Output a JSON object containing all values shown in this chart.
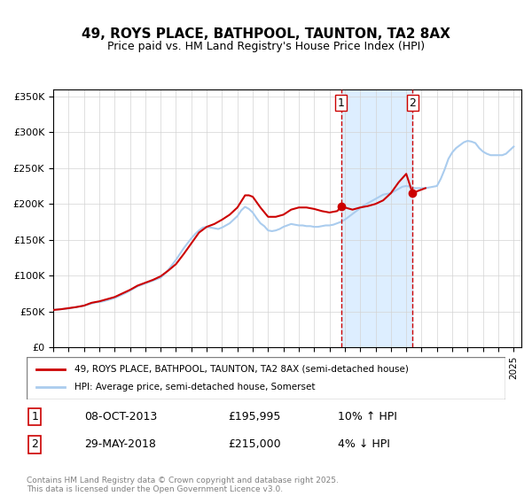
{
  "title": "49, ROYS PLACE, BATHPOOL, TAUNTON, TA2 8AX",
  "subtitle": "Price paid vs. HM Land Registry's House Price Index (HPI)",
  "legend_entry1": "49, ROYS PLACE, BATHPOOL, TAUNTON, TA2 8AX (semi-detached house)",
  "legend_entry2": "HPI: Average price, semi-detached house, Somerset",
  "footer": "Contains HM Land Registry data © Crown copyright and database right 2025.\nThis data is licensed under the Open Government Licence v3.0.",
  "sale1_date": "08-OCT-2013",
  "sale1_price": "£195,995",
  "sale1_hpi": "10% ↑ HPI",
  "sale2_date": "29-MAY-2018",
  "sale2_price": "£215,000",
  "sale2_hpi": "4% ↓ HPI",
  "marker1_x": 2013.77,
  "marker1_y": 195995,
  "marker2_x": 2018.41,
  "marker2_y": 215000,
  "vline1_x": 2013.77,
  "vline2_x": 2018.41,
  "shade_x1": 2013.77,
  "shade_x2": 2018.41,
  "hpi_color": "#aaccee",
  "price_color": "#cc0000",
  "marker_color": "#cc0000",
  "vline_color": "#cc0000",
  "shade_color": "#ddeeff",
  "ylim_min": 0,
  "ylim_max": 360000,
  "xlim_min": 1995,
  "xlim_max": 2025.5,
  "yticks": [
    0,
    50000,
    100000,
    150000,
    200000,
    250000,
    300000,
    350000
  ],
  "ytick_labels": [
    "£0",
    "£50K",
    "£100K",
    "£150K",
    "£200K",
    "£250K",
    "£300K",
    "£350K"
  ],
  "xticks": [
    1995,
    1996,
    1997,
    1998,
    1999,
    2000,
    2001,
    2002,
    2003,
    2004,
    2005,
    2006,
    2007,
    2008,
    2009,
    2010,
    2011,
    2012,
    2013,
    2014,
    2015,
    2016,
    2017,
    2018,
    2019,
    2020,
    2021,
    2022,
    2023,
    2024,
    2025
  ],
  "hpi_x": [
    1995.0,
    1995.25,
    1995.5,
    1995.75,
    1996.0,
    1996.25,
    1996.5,
    1996.75,
    1997.0,
    1997.25,
    1997.5,
    1997.75,
    1998.0,
    1998.25,
    1998.5,
    1998.75,
    1999.0,
    1999.25,
    1999.5,
    1999.75,
    2000.0,
    2000.25,
    2000.5,
    2000.75,
    2001.0,
    2001.25,
    2001.5,
    2001.75,
    2002.0,
    2002.25,
    2002.5,
    2002.75,
    2003.0,
    2003.25,
    2003.5,
    2003.75,
    2004.0,
    2004.25,
    2004.5,
    2004.75,
    2005.0,
    2005.25,
    2005.5,
    2005.75,
    2006.0,
    2006.25,
    2006.5,
    2006.75,
    2007.0,
    2007.25,
    2007.5,
    2007.75,
    2008.0,
    2008.25,
    2008.5,
    2008.75,
    2009.0,
    2009.25,
    2009.5,
    2009.75,
    2010.0,
    2010.25,
    2010.5,
    2010.75,
    2011.0,
    2011.25,
    2011.5,
    2011.75,
    2012.0,
    2012.25,
    2012.5,
    2012.75,
    2013.0,
    2013.25,
    2013.5,
    2013.75,
    2014.0,
    2014.25,
    2014.5,
    2014.75,
    2015.0,
    2015.25,
    2015.5,
    2015.75,
    2016.0,
    2016.25,
    2016.5,
    2016.75,
    2017.0,
    2017.25,
    2017.5,
    2017.75,
    2018.0,
    2018.25,
    2018.5,
    2018.75,
    2019.0,
    2019.25,
    2019.5,
    2019.75,
    2020.0,
    2020.25,
    2020.5,
    2020.75,
    2021.0,
    2021.25,
    2021.5,
    2021.75,
    2022.0,
    2022.25,
    2022.5,
    2022.75,
    2023.0,
    2023.25,
    2023.5,
    2023.75,
    2024.0,
    2024.25,
    2024.5,
    2024.75,
    2025.0
  ],
  "hpi_y": [
    52000,
    52500,
    53000,
    53500,
    54000,
    55000,
    56000,
    57000,
    58000,
    59500,
    61000,
    62500,
    63000,
    64000,
    65500,
    67000,
    68500,
    71000,
    73500,
    76000,
    79000,
    82000,
    85000,
    87000,
    89000,
    91000,
    93000,
    95000,
    97000,
    102000,
    108000,
    115000,
    122000,
    130000,
    138000,
    145000,
    152000,
    158000,
    163000,
    167000,
    168000,
    167000,
    166000,
    165000,
    167000,
    170000,
    173000,
    178000,
    183000,
    191000,
    196000,
    193000,
    188000,
    180000,
    173000,
    169000,
    163000,
    162000,
    163000,
    165000,
    168000,
    170000,
    172000,
    171000,
    170000,
    170000,
    169000,
    169000,
    168000,
    168000,
    169000,
    170000,
    170000,
    171000,
    173000,
    175000,
    178000,
    182000,
    186000,
    190000,
    194000,
    198000,
    201000,
    204000,
    207000,
    210000,
    213000,
    214000,
    215000,
    218000,
    221000,
    224000,
    225000,
    224000,
    222000,
    222000,
    222000,
    222000,
    223000,
    224000,
    225000,
    235000,
    248000,
    263000,
    272000,
    278000,
    282000,
    286000,
    288000,
    287000,
    285000,
    278000,
    273000,
    270000,
    268000,
    268000,
    268000,
    268000,
    270000,
    275000,
    280000
  ],
  "price_x": [
    1995.0,
    1995.5,
    1996.0,
    1996.5,
    1997.0,
    1997.5,
    1998.0,
    1998.5,
    1999.0,
    1999.5,
    2000.0,
    2000.5,
    2001.0,
    2001.5,
    2002.0,
    2002.5,
    2003.0,
    2003.5,
    2004.0,
    2004.5,
    2005.0,
    2005.5,
    2006.0,
    2006.5,
    2007.0,
    2007.5,
    2007.75,
    2008.0,
    2008.5,
    2009.0,
    2009.5,
    2010.0,
    2010.5,
    2011.0,
    2011.5,
    2012.0,
    2012.5,
    2013.0,
    2013.5,
    2013.77,
    2014.0,
    2014.5,
    2015.0,
    2015.5,
    2016.0,
    2016.5,
    2017.0,
    2017.5,
    2018.0,
    2018.41,
    2018.75,
    2019.0,
    2019.25
  ],
  "price_y": [
    52000,
    53000,
    54500,
    56000,
    58000,
    62000,
    64000,
    67000,
    70000,
    75000,
    80000,
    86000,
    90000,
    94000,
    99000,
    107000,
    116000,
    130000,
    145000,
    160000,
    168000,
    172000,
    178000,
    185000,
    195000,
    212000,
    212000,
    210000,
    195000,
    182000,
    182000,
    185000,
    192000,
    195000,
    195000,
    193000,
    190000,
    188000,
    190000,
    195995,
    195000,
    192000,
    195000,
    197000,
    200000,
    205000,
    215000,
    230000,
    242000,
    215000,
    218000,
    220000,
    222000
  ]
}
